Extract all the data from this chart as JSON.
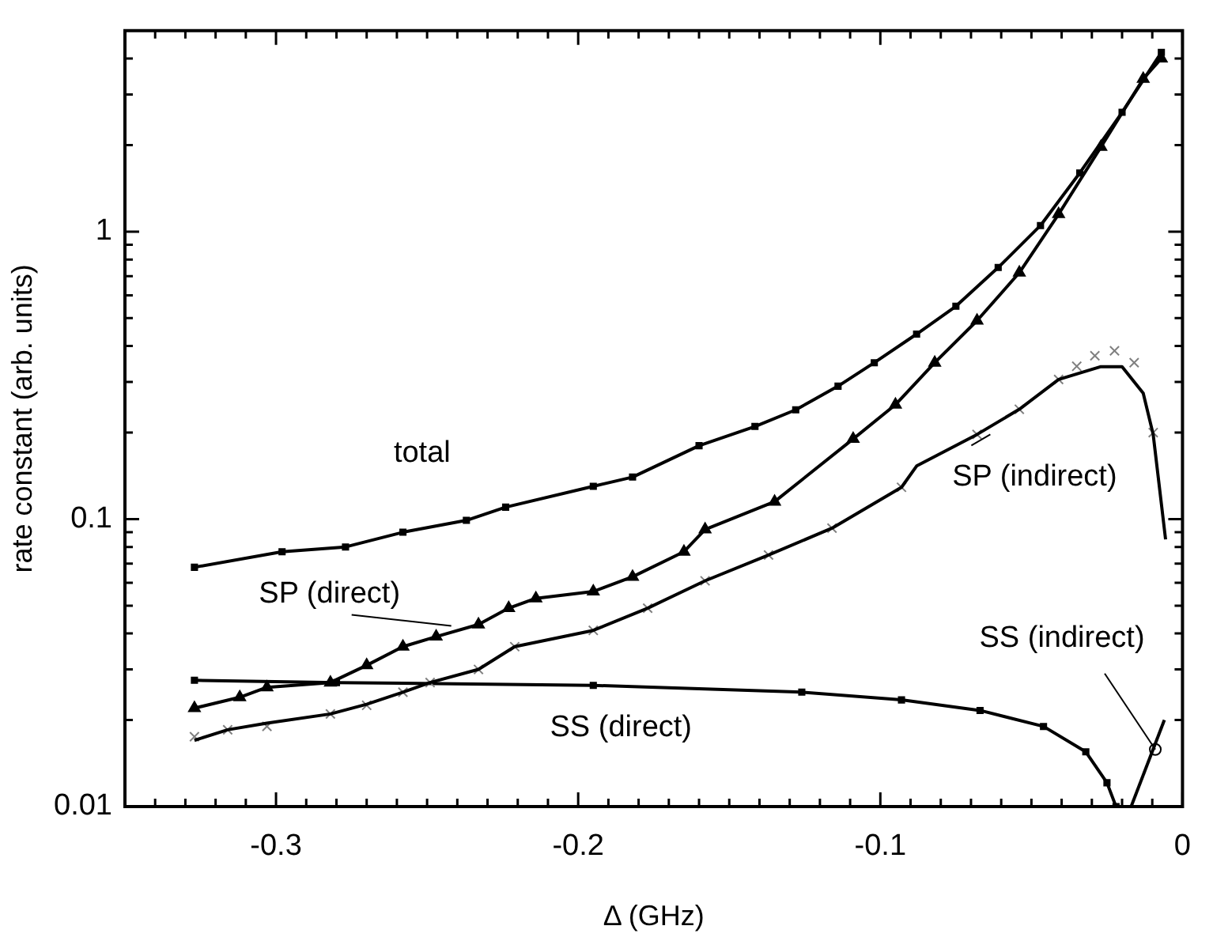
{
  "chart_data": {
    "type": "line",
    "xlabel": "Δ (GHz)",
    "ylabel": "rate constant (arb. units)",
    "log": "y",
    "xlim": [
      -0.35,
      0
    ],
    "ylim": [
      0.01,
      5
    ],
    "xticks": [
      {
        "value": -0.34,
        "label": null
      },
      -0.3,
      {
        "value": -0.33,
        "label": null
      },
      {
        "value": -0.32,
        "label": null
      },
      {
        "value": -0.31,
        "label": null
      },
      {
        "value": -0.29,
        "label": null
      },
      {
        "value": -0.28,
        "label": null
      },
      {
        "value": -0.27,
        "label": null
      },
      {
        "value": -0.26,
        "label": null
      },
      {
        "value": -0.25,
        "label": null
      },
      {
        "value": -0.24,
        "label": null
      },
      {
        "value": -0.23,
        "label": null
      },
      {
        "value": -0.22,
        "label": null
      },
      {
        "value": -0.21,
        "label": null
      },
      -0.2,
      {
        "value": -0.19,
        "label": null
      },
      {
        "value": -0.18,
        "label": null
      },
      {
        "value": -0.17,
        "label": null
      },
      {
        "value": -0.16,
        "label": null
      },
      {
        "value": -0.15,
        "label": null
      },
      {
        "value": -0.14,
        "label": null
      },
      {
        "value": -0.13,
        "label": null
      },
      {
        "value": -0.12,
        "label": null
      },
      {
        "value": -0.11,
        "label": null
      },
      -0.1,
      {
        "value": -0.09,
        "label": null
      },
      {
        "value": -0.08,
        "label": null
      },
      {
        "value": -0.07,
        "label": null
      },
      {
        "value": -0.06,
        "label": null
      },
      {
        "value": -0.05,
        "label": null
      },
      {
        "value": -0.04,
        "label": null
      },
      {
        "value": -0.03,
        "label": null
      },
      {
        "value": -0.02,
        "label": null
      },
      {
        "value": -0.01,
        "label": null
      },
      0
    ],
    "yticks": [
      0.01,
      {
        "value": 0.02,
        "label": null
      },
      {
        "value": 0.03,
        "label": null
      },
      {
        "value": 0.04,
        "label": null
      },
      {
        "value": 0.05,
        "label": null
      },
      {
        "value": 0.06,
        "label": null
      },
      {
        "value": 0.07,
        "label": null
      },
      {
        "value": 0.08,
        "label": null
      },
      {
        "value": 0.09,
        "label": null
      },
      0.1,
      {
        "value": 0.2,
        "label": null
      },
      {
        "value": 0.3,
        "label": null
      },
      {
        "value": 0.4,
        "label": null
      },
      {
        "value": 0.5,
        "label": null
      },
      {
        "value": 0.6,
        "label": null
      },
      {
        "value": 0.7,
        "label": null
      },
      {
        "value": 0.8,
        "label": null
      },
      {
        "value": 0.9,
        "label": null
      },
      1,
      {
        "value": 2,
        "label": null
      },
      {
        "value": 3,
        "label": null
      },
      {
        "value": 4,
        "label": null
      }
    ],
    "series": [
      {
        "type": "line",
        "marker": "square",
        "color": "#000000",
        "x": [
          -0.327,
          -0.298,
          -0.277,
          -0.258,
          -0.237,
          -0.224,
          -0.195,
          -0.182,
          -0.16,
          -0.1415,
          -0.128,
          -0.114,
          -0.102,
          -0.088,
          -0.075,
          -0.061,
          -0.047,
          -0.034,
          -0.02,
          -0.007
        ],
        "values": [
          0.068,
          0.077,
          0.08,
          0.09,
          0.099,
          0.11,
          0.13,
          0.14,
          0.18,
          0.21,
          0.24,
          0.29,
          0.35,
          0.44,
          0.55,
          0.75,
          1.05,
          1.6,
          2.6,
          4.2
        ]
      },
      {
        "type": "line",
        "marker": "triangle",
        "color": "#000000",
        "x": [
          -0.327,
          -0.312,
          -0.303,
          -0.282,
          -0.27,
          -0.258,
          -0.247,
          -0.233,
          -0.223,
          -0.214,
          -0.195,
          -0.182,
          -0.165,
          -0.158,
          -0.135,
          -0.109,
          -0.095,
          -0.082,
          -0.068,
          -0.054,
          -0.041,
          -0.027,
          -0.013,
          -0.007
        ],
        "values": [
          0.022,
          0.024,
          0.026,
          0.027,
          0.031,
          0.036,
          0.039,
          0.043,
          0.049,
          0.053,
          0.056,
          0.063,
          0.077,
          0.092,
          0.115,
          0.19,
          0.25,
          0.35,
          0.49,
          0.72,
          1.15,
          1.97,
          3.4,
          4.0
        ]
      },
      {
        "type": "line",
        "marker": "none",
        "color": "#000000",
        "x": [
          -0.327,
          -0.316,
          -0.303,
          -0.282,
          -0.27,
          -0.258,
          -0.249,
          -0.233,
          -0.221,
          -0.195,
          -0.177,
          -0.158,
          -0.137,
          -0.116,
          -0.093,
          -0.088,
          -0.068,
          -0.054,
          -0.041,
          -0.027,
          -0.02,
          -0.013,
          -0.0097,
          -0.0056
        ],
        "values": [
          0.017,
          0.0185,
          0.0195,
          0.021,
          0.0227,
          0.025,
          0.027,
          0.03,
          0.036,
          0.041,
          0.049,
          0.061,
          0.075,
          0.093,
          0.129,
          0.153,
          0.197,
          0.241,
          0.306,
          0.339,
          0.339,
          0.274,
          0.197,
          0.085
        ]
      },
      {
        "type": "scatter",
        "marker": "cross",
        "color": "#808080",
        "x": [
          -0.327,
          -0.316,
          -0.303,
          -0.282,
          -0.27,
          -0.258,
          -0.249,
          -0.233,
          -0.221,
          -0.195,
          -0.177,
          -0.158,
          -0.137,
          -0.116,
          -0.093,
          -0.068,
          -0.054,
          -0.041,
          -0.035,
          -0.029,
          -0.0225,
          -0.016,
          -0.0097
        ],
        "values": [
          0.0175,
          0.0185,
          0.019,
          0.021,
          0.0225,
          0.025,
          0.027,
          0.03,
          0.036,
          0.041,
          0.049,
          0.061,
          0.075,
          0.093,
          0.129,
          0.197,
          0.241,
          0.306,
          0.34,
          0.37,
          0.385,
          0.35,
          0.2
        ]
      },
      {
        "type": "line",
        "marker": "square",
        "color": "#000000",
        "x": [
          -0.327,
          -0.28,
          -0.195,
          -0.126,
          -0.093,
          -0.067,
          -0.046,
          -0.032,
          -0.025,
          -0.022
        ],
        "values": [
          0.0275,
          0.027,
          0.0264,
          0.025,
          0.0235,
          0.0216,
          0.019,
          0.0155,
          0.0121,
          0.01
        ]
      },
      {
        "type": "line",
        "marker": "none",
        "color": "#000000",
        "x": [
          -0.017,
          -0.006
        ],
        "values": [
          0.01,
          0.02
        ]
      },
      {
        "type": "scatter",
        "marker": "circle",
        "color": "#000000",
        "x": [
          -0.009
        ],
        "values": [
          0.0158
        ]
      }
    ],
    "annotations": [
      "total",
      {
        "text": "SP (direct)",
        "x": -0.242,
        "y": 0.0425
      },
      {
        "text": "SP (indirect)",
        "x": -0.0636,
        "y": 0.197
      },
      "SS (direct)",
      {
        "text": "SS (indirect)",
        "x": -0.009,
        "y": 0.0158
      }
    ]
  }
}
